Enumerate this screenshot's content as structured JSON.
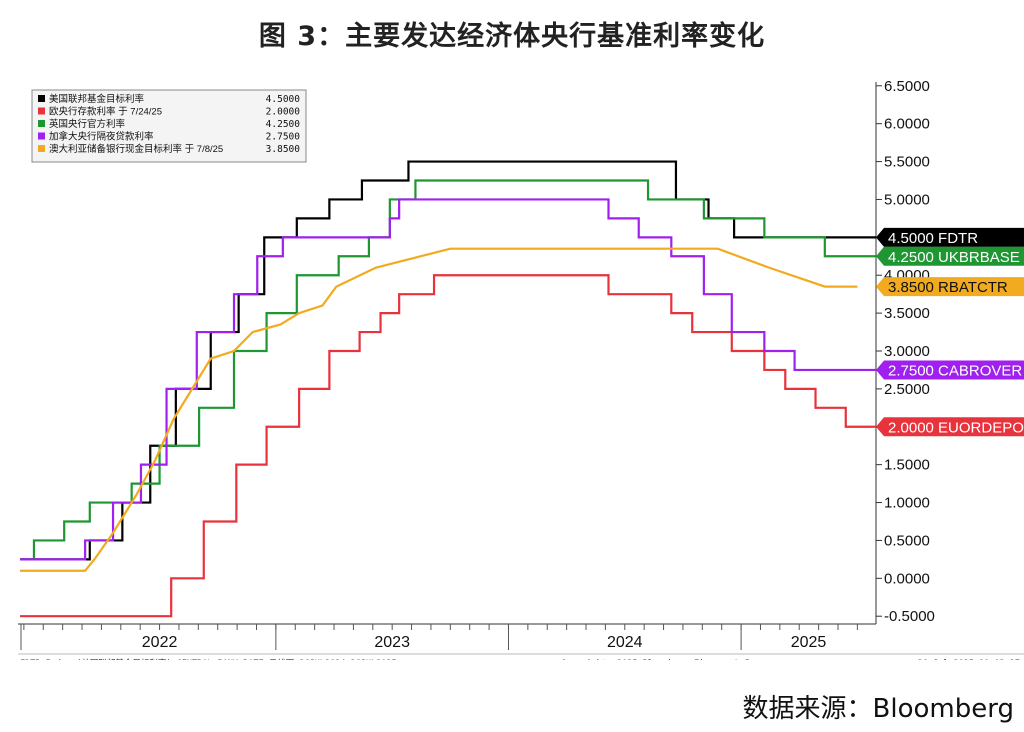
{
  "page": {
    "title": "图 3：主要发达经济体央行基准利率变化",
    "source": "数据来源：Bloomberg"
  },
  "footer": {
    "left": "FDTR Index (美国联邦基金目标利率) CENTRAL BANK RATE  日线图 26JUL2024-26JUL2025",
    "center": "Copyright© 2025 Bloomberg Finance L.P.",
    "right": "26-Jul-2025 10:03:27"
  },
  "chart_data": {
    "type": "line",
    "step": true,
    "x_axis": {
      "years": [
        "2022",
        "2023",
        "2024",
        "2025"
      ],
      "min": 2021.9,
      "max": 2025.58
    },
    "y_axis": {
      "min": -0.55,
      "max": 6.55,
      "position": "right",
      "ticks": [
        -0.5,
        0.0,
        0.5,
        1.0,
        1.5,
        2.0,
        2.5,
        3.0,
        3.5,
        4.0,
        4.5,
        5.0,
        5.5,
        6.0,
        6.5
      ],
      "tick_labels": [
        "-0.5000",
        "0.0000",
        "0.5000",
        "1.0000",
        "1.5000",
        "2.0000",
        "2.5000",
        "3.0000",
        "3.5000",
        "4.0000",
        "4.5000",
        "5.0000",
        "5.5000",
        "6.0000",
        "6.5000"
      ]
    },
    "grid": false,
    "legend_placement": "top-left",
    "series": [
      {
        "name": "美国联邦基金目标利率",
        "legend_value": "4.5000",
        "tag": "4.5000 FDTR",
        "color": "#000000",
        "tag_text_color": "#ffffff",
        "last": 4.5,
        "points": [
          [
            2021.9,
            0.25
          ],
          [
            2022.2,
            0.5
          ],
          [
            2022.34,
            1.0
          ],
          [
            2022.46,
            1.75
          ],
          [
            2022.57,
            2.5
          ],
          [
            2022.72,
            3.25
          ],
          [
            2022.84,
            3.75
          ],
          [
            2022.95,
            4.5
          ],
          [
            2023.09,
            4.75
          ],
          [
            2023.23,
            5.0
          ],
          [
            2023.37,
            5.25
          ],
          [
            2023.57,
            5.5
          ],
          [
            2024.72,
            5.0
          ],
          [
            2024.86,
            4.75
          ],
          [
            2024.97,
            4.5
          ],
          [
            2025.58,
            4.5
          ]
        ]
      },
      {
        "name": "欧央行存款利率 于 7/24/25",
        "legend_value": "2.0000",
        "tag": "2.0000 EUORDEPO",
        "color": "#e8323c",
        "tag_text_color": "#ffffff",
        "last": 2.0,
        "points": [
          [
            2021.9,
            -0.5
          ],
          [
            2022.55,
            -0.5
          ],
          [
            2022.55,
            0.0
          ],
          [
            2022.69,
            0.75
          ],
          [
            2022.83,
            1.5
          ],
          [
            2022.96,
            2.0
          ],
          [
            2023.1,
            2.5
          ],
          [
            2023.23,
            3.0
          ],
          [
            2023.36,
            3.25
          ],
          [
            2023.45,
            3.5
          ],
          [
            2023.53,
            3.75
          ],
          [
            2023.68,
            4.0
          ],
          [
            2024.43,
            3.75
          ],
          [
            2024.7,
            3.5
          ],
          [
            2024.79,
            3.25
          ],
          [
            2024.96,
            3.0
          ],
          [
            2025.1,
            2.75
          ],
          [
            2025.19,
            2.5
          ],
          [
            2025.32,
            2.25
          ],
          [
            2025.45,
            2.0
          ],
          [
            2025.58,
            2.0
          ]
        ]
      },
      {
        "name": "英国央行官方利率",
        "legend_value": "4.2500",
        "tag": "4.2500 UKBRBASE",
        "color": "#1e9632",
        "tag_text_color": "#ffffff",
        "last": 4.25,
        "points": [
          [
            2021.9,
            0.25
          ],
          [
            2021.96,
            0.5
          ],
          [
            2022.09,
            0.75
          ],
          [
            2022.2,
            1.0
          ],
          [
            2022.38,
            1.25
          ],
          [
            2022.5,
            1.75
          ],
          [
            2022.67,
            2.25
          ],
          [
            2022.82,
            3.0
          ],
          [
            2022.96,
            3.5
          ],
          [
            2023.09,
            4.0
          ],
          [
            2023.27,
            4.25
          ],
          [
            2023.4,
            4.5
          ],
          [
            2023.49,
            5.0
          ],
          [
            2023.6,
            5.25
          ],
          [
            2024.6,
            5.0
          ],
          [
            2024.84,
            4.75
          ],
          [
            2025.1,
            4.5
          ],
          [
            2025.36,
            4.25
          ],
          [
            2025.58,
            4.25
          ]
        ]
      },
      {
        "name": "加拿大央行隔夜贷款利率",
        "legend_value": "2.7500",
        "tag": "2.7500 CABROVER",
        "color": "#a020f0",
        "tag_text_color": "#ffffff",
        "last": 2.75,
        "points": [
          [
            2021.9,
            0.25
          ],
          [
            2022.18,
            0.5
          ],
          [
            2022.3,
            1.0
          ],
          [
            2022.42,
            1.5
          ],
          [
            2022.53,
            2.5
          ],
          [
            2022.66,
            3.25
          ],
          [
            2022.82,
            3.75
          ],
          [
            2022.92,
            4.25
          ],
          [
            2023.03,
            4.5
          ],
          [
            2023.49,
            4.75
          ],
          [
            2023.53,
            5.0
          ],
          [
            2024.43,
            4.75
          ],
          [
            2024.56,
            4.5
          ],
          [
            2024.7,
            4.25
          ],
          [
            2024.84,
            3.75
          ],
          [
            2024.96,
            3.25
          ],
          [
            2025.1,
            3.0
          ],
          [
            2025.23,
            2.75
          ],
          [
            2025.58,
            2.75
          ]
        ]
      },
      {
        "name": "澳大利亚储备银行现金目标利率 于 7/8/25",
        "legend_value": "3.8500",
        "tag": "3.8500 RBATCTR",
        "color": "#f2aa1e",
        "tag_text_color": "#111111",
        "last": 3.85,
        "points": [
          [
            2021.9,
            0.1
          ],
          [
            2022.18,
            0.1
          ],
          [
            2022.22,
            0.25
          ],
          [
            2022.3,
            0.6
          ],
          [
            2022.4,
            1.1
          ],
          [
            2022.48,
            1.55
          ],
          [
            2022.56,
            2.1
          ],
          [
            2022.64,
            2.5
          ],
          [
            2022.72,
            2.9
          ],
          [
            2022.82,
            3.0
          ],
          [
            2022.9,
            3.25
          ],
          [
            2023.02,
            3.35
          ],
          [
            2023.1,
            3.5
          ],
          [
            2023.2,
            3.6
          ],
          [
            2023.26,
            3.85
          ],
          [
            2023.43,
            4.1
          ],
          [
            2023.75,
            4.35
          ],
          [
            2024.9,
            4.35
          ],
          [
            2025.12,
            4.1
          ],
          [
            2025.36,
            3.85
          ],
          [
            2025.5,
            3.85
          ]
        ]
      }
    ]
  }
}
